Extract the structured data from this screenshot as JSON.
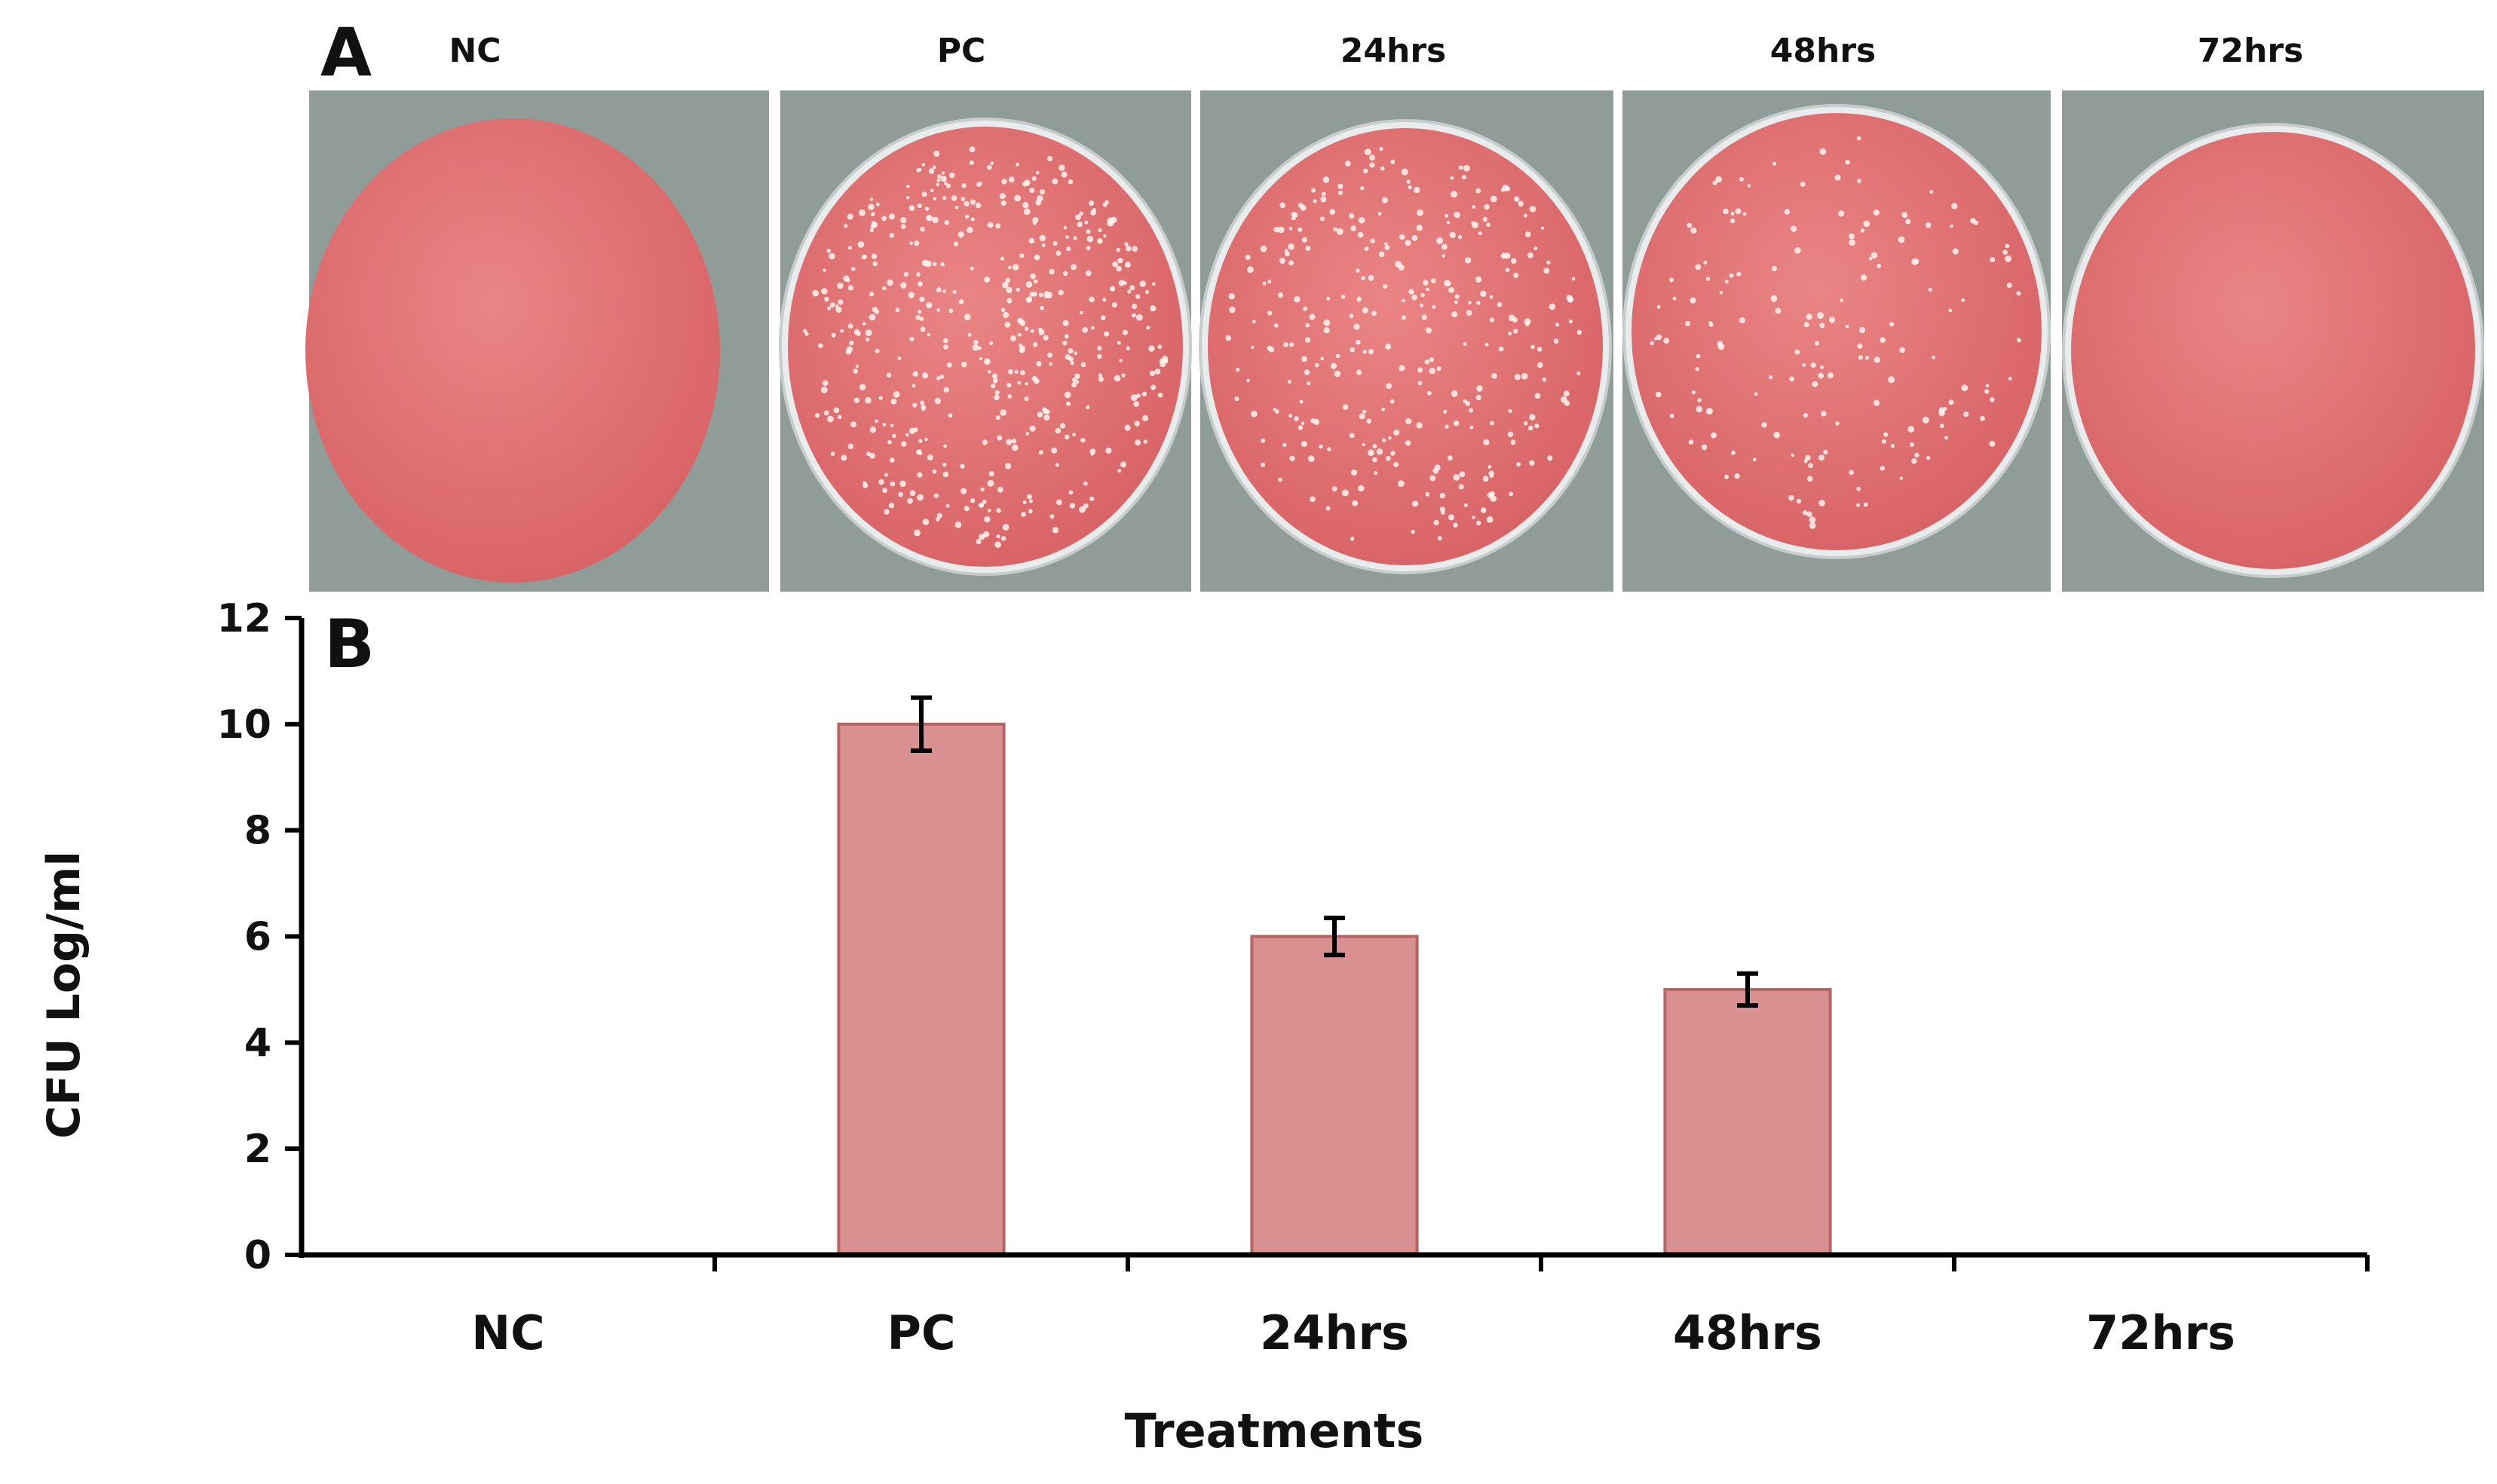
{
  "panel_a": {
    "letter": "A",
    "plates": [
      {
        "label": "NC",
        "colonies": "none"
      },
      {
        "label": "PC",
        "colonies": "dense"
      },
      {
        "label": "24hrs",
        "colonies": "moderate"
      },
      {
        "label": "48hrs",
        "colonies": "sparse"
      },
      {
        "label": "72hrs",
        "colonies": "none"
      }
    ],
    "colors": {
      "backdrop": "#8f9c98",
      "agar": "#e07070",
      "agar_dark": "#d45e60",
      "colony": "#fff4ee"
    }
  },
  "chart_data": {
    "type": "bar",
    "panel_letter": "B",
    "categories": [
      "NC",
      "PC",
      "24hrs",
      "48hrs",
      "72hrs"
    ],
    "values": [
      0,
      10,
      6,
      5,
      0
    ],
    "errors": [
      0,
      0.5,
      0.35,
      0.3,
      0
    ],
    "xlabel": "Treatments",
    "ylabel": "CFU Log/ml",
    "ylim": [
      0,
      12
    ],
    "yticks": [
      0,
      2,
      4,
      6,
      8,
      10,
      12
    ],
    "grid": false,
    "bar_color": "#d99090",
    "bar_edge": "#b86464"
  }
}
